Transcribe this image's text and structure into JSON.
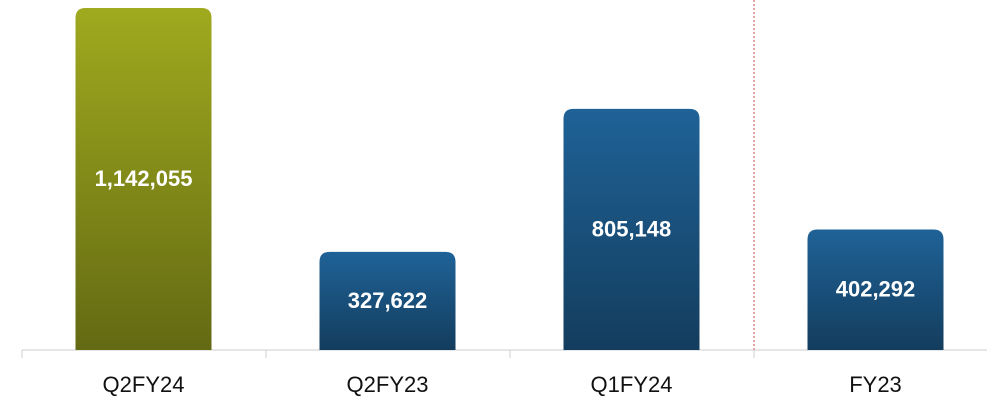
{
  "chart_data": {
    "type": "bar",
    "categories": [
      "Q2FY24",
      "Q2FY23",
      "Q1FY24",
      "FY23"
    ],
    "values": [
      1142055,
      327622,
      805148,
      402292
    ],
    "value_labels": [
      "1,142,055",
      "327,622",
      "805,148",
      "402,292"
    ],
    "colors": [
      "#a0aa1e",
      "#1f6297",
      "#1f6297",
      "#1f6297"
    ]
  }
}
